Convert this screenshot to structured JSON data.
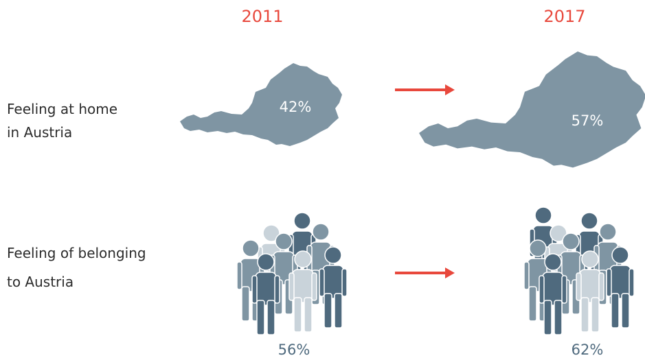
{
  "columns": [
    "2011",
    "2017"
  ],
  "rows": [
    {
      "label": [
        "Feeling at home",
        "in Austria"
      ],
      "values": [
        "42%",
        "57%"
      ]
    },
    {
      "label": [
        "Feeling of belonging",
        "to Austria"
      ],
      "values": [
        "56%",
        "62%"
      ]
    }
  ]
}
